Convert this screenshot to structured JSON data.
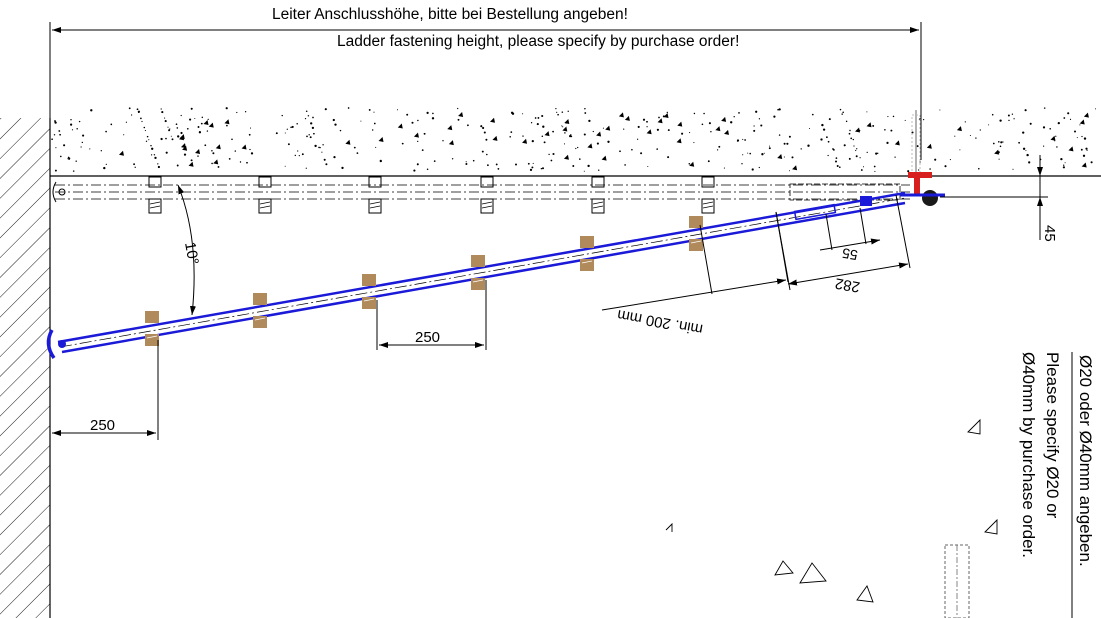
{
  "header": {
    "note_de": "Leiter Anschlusshöhe, bitte bei Bestellung angeben!",
    "note_en": "Ladder fastening height, please specify by purchase order!"
  },
  "dimensions": {
    "angle": "10°",
    "rung_spacing": "250",
    "wall_offset": "250",
    "min_clearance": "min. 200 mm",
    "dim_55": "55",
    "dim_282": "282",
    "dim_45": "45"
  },
  "side_notes": {
    "diameter_de": "Ø20 oder Ø40mm angeben.",
    "diameter_en_1": "Please specify Ø20 or",
    "diameter_en_2": "Ø40mm by purchase order."
  },
  "colors": {
    "ladder_stroke": "#1a1ad8",
    "rung_fill": "#b08a5a",
    "anchor_red": "#d81f1f",
    "line_black": "#000000"
  }
}
